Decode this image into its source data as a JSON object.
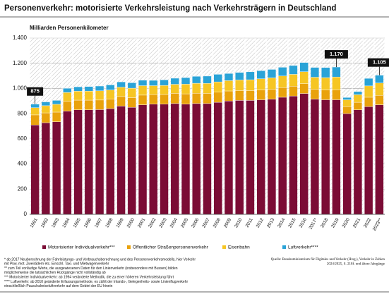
{
  "chart_data": {
    "type": "stacked_bar",
    "title": "Personenverkehr: motorisierte Verkehrsleistung nach Verkehrsträgern in Deutschland",
    "y_label": "Milliarden Personenkilometer",
    "categories": [
      "1991",
      "1992",
      "1993",
      "1994",
      "1995",
      "1996",
      "1997",
      "1998",
      "1999",
      "2000",
      "2001",
      "2002",
      "2003",
      "2004",
      "2005",
      "2006",
      "2007",
      "2008",
      "2009",
      "2010",
      "2011",
      "2012",
      "2013",
      "2014",
      "2015",
      "2016",
      "2017*",
      "2018",
      "2019",
      "2020",
      "2021",
      "2022",
      "2023**"
    ],
    "series": [
      {
        "name": "Motorisierter Individualverkehr***",
        "color": "#7b0c35",
        "values": [
          710,
          728,
          735,
          820,
          830,
          830,
          832,
          840,
          860,
          850,
          870,
          875,
          875,
          880,
          875,
          880,
          880,
          890,
          900,
          905,
          905,
          910,
          915,
          930,
          940,
          960,
          915,
          910,
          910,
          800,
          830,
          855,
          870
        ]
      },
      {
        "name": "Öffentlicher Straßenpersonenverkehr",
        "color": "#e9a20c",
        "values": [
          80,
          78,
          77,
          78,
          77,
          77,
          76,
          76,
          76,
          77,
          77,
          76,
          77,
          81,
          82,
          82,
          81,
          80,
          80,
          78,
          78,
          78,
          78,
          77,
          78,
          78,
          78,
          78,
          79,
          55,
          60,
          75,
          75
        ]
      },
      {
        "name": "Eisenbahn",
        "color": "#f6c624",
        "values": [
          57,
          57,
          62,
          70,
          71,
          72,
          73,
          72,
          74,
          75,
          75,
          71,
          72,
          72,
          77,
          79,
          79,
          82,
          82,
          84,
          86,
          89,
          91,
          92,
          94,
          95,
          96,
          98,
          102,
          55,
          60,
          90,
          98
        ]
      },
      {
        "name": "Luftverkehr****",
        "color": "#2aa3d7",
        "values": [
          28,
          30,
          31,
          33,
          35,
          36,
          38,
          40,
          42,
          43,
          43,
          42,
          44,
          48,
          52,
          55,
          58,
          60,
          57,
          60,
          63,
          64,
          67,
          69,
          70,
          73,
          78,
          80,
          79,
          18,
          25,
          60,
          62
        ]
      }
    ],
    "ylim": [
      0,
      1400
    ],
    "yticks": [
      0,
      200,
      400,
      600,
      800,
      {
        "value": 1000,
        "label": "1.000"
      },
      {
        "value": 1200,
        "label": "1.200"
      },
      {
        "value": 1400,
        "label": "1.400"
      }
    ],
    "grid": true,
    "annotations": [
      {
        "category": 0,
        "value": 875,
        "label": "875"
      },
      {
        "category": 28,
        "value": 1170,
        "label": "1.170"
      },
      {
        "category": 32,
        "value": 1105,
        "label": "1.105"
      }
    ],
    "footnotes": [
      "* ab 2017 Neuberechnung der Fahrleistungs- und Verbrauchsberechnung und des Personenverkehrsmodells, hier Verkehr",
      "mit Pkw, mot. Zweirädern etc. Einschl. Taxi- und Mietwagenverkehr",
      "** zum Teil vorläufige Werte, die ausgewiesenen Daten für den Linienverkehr (insbesondere mit Bussen) bilden",
      "möglicherweise die tatsächlichen Rückgänge nicht vollständig ab",
      "*** Motorisierter Individualverkehr: ab 1994 veränderte Methodik, die zu einer höheren Verkehrsleistung führt",
      "**** Luftverkehr: ab 2010 geänderte Erfassungsmethode, es zählt der Inlands-, Gelegenheits- sowie Linienflugverkehr",
      "einschließlich Pauschalreiseluftverkehr auf dem Gebiet der EU hinein"
    ],
    "source": [
      "Quelle: Bundesministerium für Digitales und Verkehr (Hrsg.), Verkehr in Zahlen",
      "2024/2025, S. 218f. und ältere Jahrgänge"
    ]
  }
}
